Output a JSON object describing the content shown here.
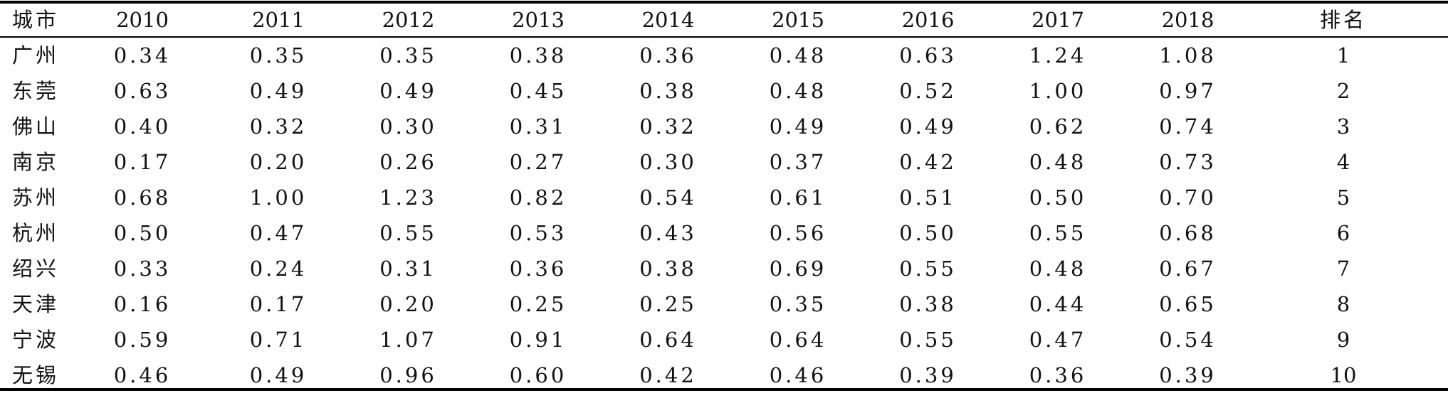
{
  "table": {
    "headers": [
      "城市",
      "2010",
      "2011",
      "2012",
      "2013",
      "2014",
      "2015",
      "2016",
      "2017",
      "2018",
      "排名"
    ],
    "rows": [
      [
        "广州",
        "0.34",
        "0.35",
        "0.35",
        "0.38",
        "0.36",
        "0.48",
        "0.63",
        "1.24",
        "1.08",
        "1"
      ],
      [
        "东莞",
        "0.63",
        "0.49",
        "0.49",
        "0.45",
        "0.38",
        "0.48",
        "0.52",
        "1.00",
        "0.97",
        "2"
      ],
      [
        "佛山",
        "0.40",
        "0.32",
        "0.30",
        "0.31",
        "0.32",
        "0.49",
        "0.49",
        "0.62",
        "0.74",
        "3"
      ],
      [
        "南京",
        "0.17",
        "0.20",
        "0.26",
        "0.27",
        "0.30",
        "0.37",
        "0.42",
        "0.48",
        "0.73",
        "4"
      ],
      [
        "苏州",
        "0.68",
        "1.00",
        "1.23",
        "0.82",
        "0.54",
        "0.61",
        "0.51",
        "0.50",
        "0.70",
        "5"
      ],
      [
        "杭州",
        "0.50",
        "0.47",
        "0.55",
        "0.53",
        "0.43",
        "0.56",
        "0.50",
        "0.55",
        "0.68",
        "6"
      ],
      [
        "绍兴",
        "0.33",
        "0.24",
        "0.31",
        "0.36",
        "0.38",
        "0.69",
        "0.55",
        "0.48",
        "0.67",
        "7"
      ],
      [
        "天津",
        "0.16",
        "0.17",
        "0.20",
        "0.25",
        "0.25",
        "0.35",
        "0.38",
        "0.44",
        "0.65",
        "8"
      ],
      [
        "宁波",
        "0.59",
        "0.71",
        "1.07",
        "0.91",
        "0.64",
        "0.64",
        "0.55",
        "0.47",
        "0.54",
        "9"
      ],
      [
        "无锡",
        "0.46",
        "0.49",
        "0.96",
        "0.60",
        "0.42",
        "0.46",
        "0.39",
        "0.36",
        "0.39",
        "10"
      ]
    ]
  }
}
